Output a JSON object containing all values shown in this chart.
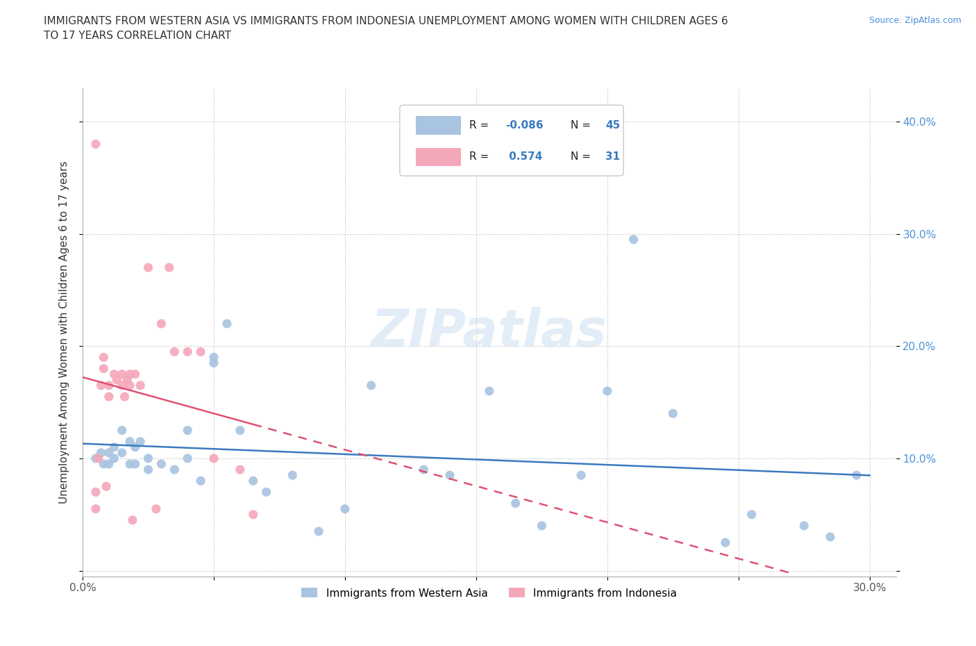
{
  "title": "IMMIGRANTS FROM WESTERN ASIA VS IMMIGRANTS FROM INDONESIA UNEMPLOYMENT AMONG WOMEN WITH CHILDREN AGES 6\nTO 17 YEARS CORRELATION CHART",
  "source_text": "Source: ZipAtlas.com",
  "ylabel": "Unemployment Among Women with Children Ages 6 to 17 years",
  "xlim": [
    0.0,
    0.31
  ],
  "ylim": [
    -0.005,
    0.43
  ],
  "xticks": [
    0.0,
    0.05,
    0.1,
    0.15,
    0.2,
    0.25,
    0.3
  ],
  "yticks": [
    0.0,
    0.1,
    0.2,
    0.3,
    0.4
  ],
  "xtick_labels": [
    "0.0%",
    "",
    "",
    "",
    "",
    "",
    "30.0%"
  ],
  "ytick_labels": [
    "",
    "10.0%",
    "20.0%",
    "30.0%",
    "40.0%"
  ],
  "western_asia_color": "#a8c4e0",
  "indonesia_color": "#f4a7b9",
  "western_asia_line_color": "#3a7abf",
  "indonesia_line_color": "#e05070",
  "watermark": "ZIPatlas",
  "western_asia_x": [
    0.005,
    0.007,
    0.008,
    0.01,
    0.01,
    0.012,
    0.012,
    0.015,
    0.015,
    0.018,
    0.018,
    0.02,
    0.02,
    0.022,
    0.025,
    0.025,
    0.03,
    0.035,
    0.04,
    0.04,
    0.045,
    0.05,
    0.05,
    0.055,
    0.06,
    0.065,
    0.07,
    0.08,
    0.09,
    0.1,
    0.11,
    0.13,
    0.14,
    0.155,
    0.165,
    0.175,
    0.19,
    0.2,
    0.21,
    0.225,
    0.245,
    0.255,
    0.275,
    0.285,
    0.295
  ],
  "western_asia_y": [
    0.1,
    0.105,
    0.095,
    0.105,
    0.095,
    0.11,
    0.1,
    0.125,
    0.105,
    0.115,
    0.095,
    0.11,
    0.095,
    0.115,
    0.1,
    0.09,
    0.095,
    0.09,
    0.125,
    0.1,
    0.08,
    0.185,
    0.19,
    0.22,
    0.125,
    0.08,
    0.07,
    0.085,
    0.035,
    0.055,
    0.165,
    0.09,
    0.085,
    0.16,
    0.06,
    0.04,
    0.085,
    0.16,
    0.295,
    0.14,
    0.025,
    0.05,
    0.04,
    0.03,
    0.085
  ],
  "indonesia_x": [
    0.005,
    0.005,
    0.005,
    0.006,
    0.007,
    0.008,
    0.008,
    0.009,
    0.01,
    0.01,
    0.012,
    0.013,
    0.015,
    0.015,
    0.016,
    0.017,
    0.018,
    0.018,
    0.019,
    0.02,
    0.022,
    0.025,
    0.028,
    0.03,
    0.033,
    0.035,
    0.04,
    0.045,
    0.05,
    0.06,
    0.065
  ],
  "indonesia_y": [
    0.38,
    0.07,
    0.055,
    0.1,
    0.165,
    0.19,
    0.18,
    0.075,
    0.165,
    0.155,
    0.175,
    0.17,
    0.175,
    0.165,
    0.155,
    0.17,
    0.175,
    0.165,
    0.045,
    0.175,
    0.165,
    0.27,
    0.055,
    0.22,
    0.27,
    0.195,
    0.195,
    0.195,
    0.1,
    0.09,
    0.05
  ]
}
